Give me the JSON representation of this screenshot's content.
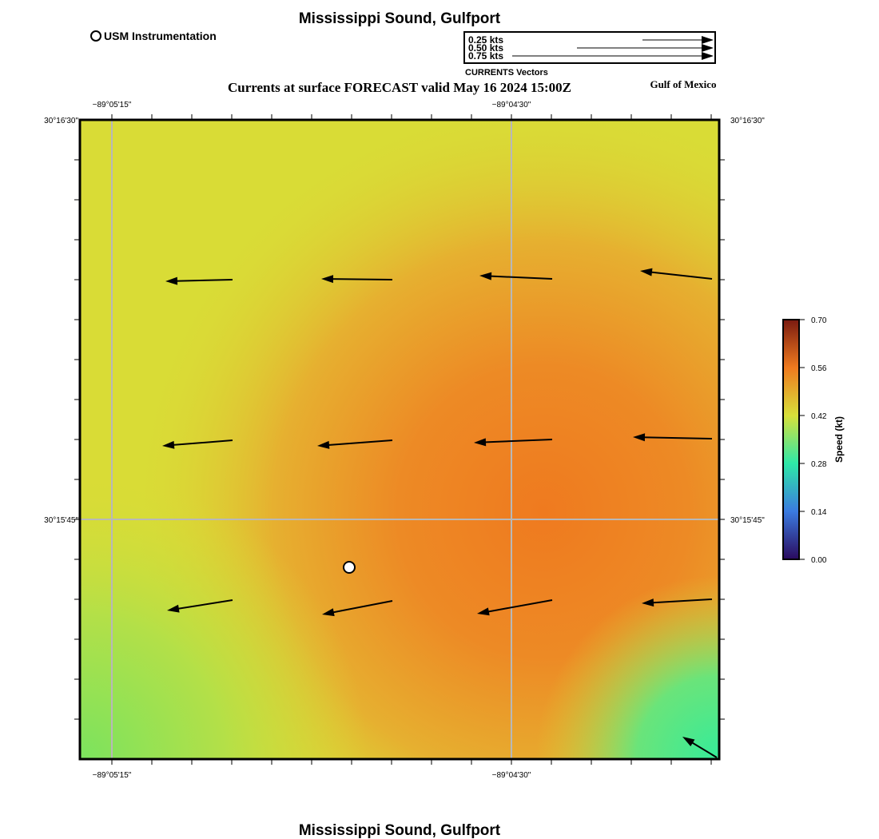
{
  "map": {
    "title": "Mississippi Sound, Gulfport",
    "footer_title": "Mississippi Sound, Gulfport",
    "subtitle": "Currents at surface FORECAST valid May 16 2024 15:00Z",
    "region_label": "Gulf of Mexico",
    "marker_legend_label": "USM Instrumentation",
    "longitude_ticks": [
      "−89°05'15\"",
      "−89°04'30\""
    ],
    "latitude_ticks": [
      "30°16'30\"",
      "30°15'45\""
    ]
  },
  "vector_legend": {
    "title": "CURRENTS Vectors",
    "entries": [
      {
        "label": "0.25 kts",
        "speed_kt": 0.25
      },
      {
        "label": "0.50 kts",
        "speed_kt": 0.5
      },
      {
        "label": "0.75 kts",
        "speed_kt": 0.75
      }
    ]
  },
  "colorbar": {
    "label": "Speed (kt)",
    "ticks": [
      "0.00",
      "0.14",
      "0.28",
      "0.42",
      "0.56",
      "0.70"
    ],
    "min": 0.0,
    "max": 0.7,
    "colors": [
      "#2a0a5e",
      "#3b7be0",
      "#2ee8a8",
      "#d8e03a",
      "#ef7a1f",
      "#7a1a10"
    ]
  },
  "colors": {
    "arrow": "#000000",
    "grid": "#b8b8b8",
    "marker_fill": "#ffffff"
  }
}
